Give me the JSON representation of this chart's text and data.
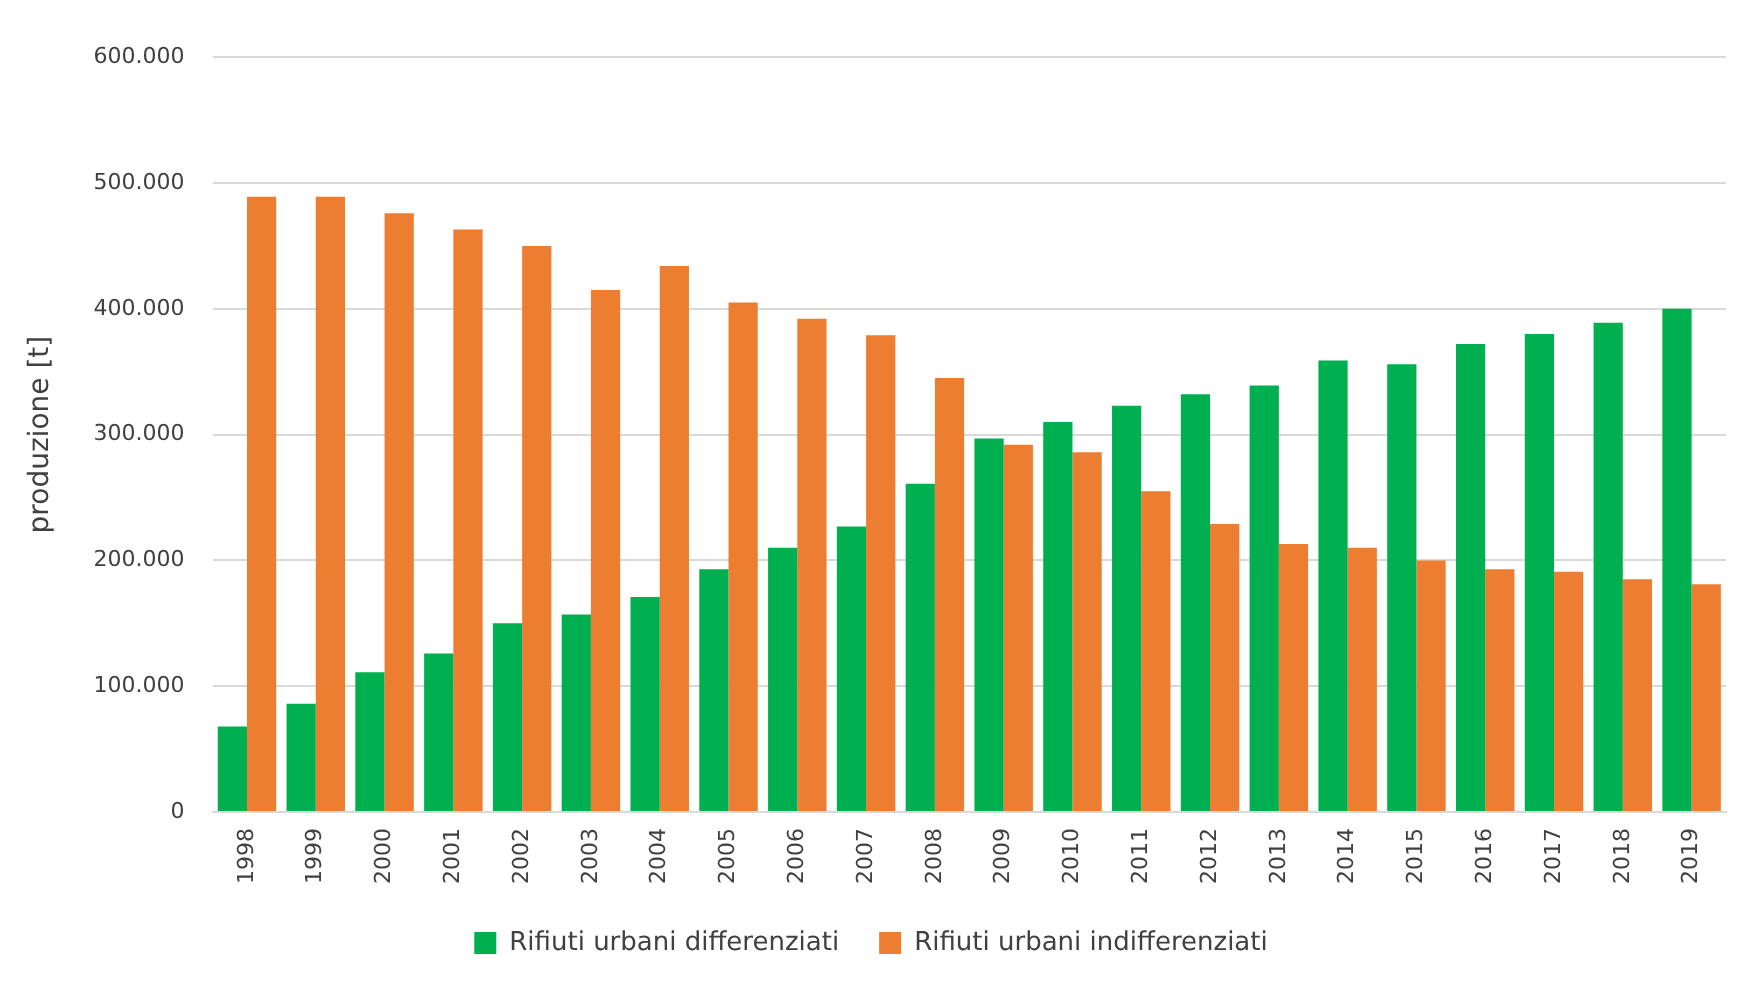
{
  "chart_data": {
    "type": "bar",
    "ylabel": "produzione [t]",
    "categories": [
      "1998",
      "1999",
      "2000",
      "2001",
      "2002",
      "2003",
      "2004",
      "2005",
      "2006",
      "2007",
      "2008",
      "2009",
      "2010",
      "2011",
      "2012",
      "2013",
      "2014",
      "2015",
      "2016",
      "2017",
      "2018",
      "2019"
    ],
    "series": [
      {
        "name": "Rifiuti urbani differenziati",
        "color": "#00b050",
        "values": [
          68000,
          86000,
          111000,
          126000,
          150000,
          157000,
          171000,
          193000,
          210000,
          227000,
          261000,
          297000,
          310000,
          323000,
          332000,
          339000,
          359000,
          356000,
          372000,
          380000,
          389000,
          400000
        ]
      },
      {
        "name": "Rifiuti urbani indifferenziati",
        "color": "#ed7d31",
        "values": [
          489000,
          489000,
          476000,
          463000,
          450000,
          415000,
          434000,
          405000,
          392000,
          379000,
          345000,
          292000,
          286000,
          255000,
          229000,
          213000,
          210000,
          200000,
          193000,
          191000,
          185000,
          181000
        ]
      }
    ],
    "ylim": [
      0,
      600000
    ],
    "yticks": [
      {
        "value": 0,
        "label": "0"
      },
      {
        "value": 100000,
        "label": "100.000"
      },
      {
        "value": 200000,
        "label": "200.000"
      },
      {
        "value": 300000,
        "label": "300.000"
      },
      {
        "value": 400000,
        "label": "400.000"
      },
      {
        "value": 500000,
        "label": "500.000"
      },
      {
        "value": 600000,
        "label": "600.000"
      }
    ],
    "grid": "y",
    "legend": "bottom"
  }
}
